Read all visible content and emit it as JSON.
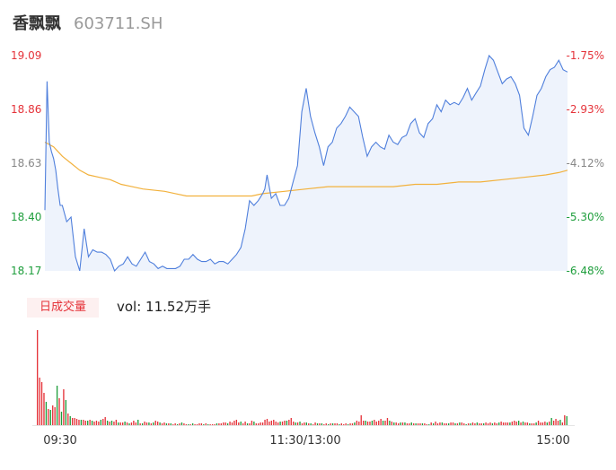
{
  "header": {
    "name": "香飘飘",
    "code": "603711.SH"
  },
  "volume_label": {
    "tab": "日成交量",
    "value": "vol: 11.52万手"
  },
  "colors": {
    "price_line": "#4f7fdc",
    "avg_line": "#f2b13c",
    "up": "#e5333a",
    "down": "#1e9e3c",
    "neutral": "#888888"
  },
  "chart_data": [
    {
      "type": "line",
      "title": "",
      "y_tick_labels": [
        "19.09",
        "18.86",
        "18.63",
        "18.40",
        "18.17"
      ],
      "pct_tick_labels": [
        "-1.75%",
        "-2.93%",
        "-4.12%",
        "-5.30%",
        "-6.48%"
      ],
      "x_tick_labels": [
        "09:30",
        "11:30/13:00",
        "15:00"
      ],
      "ylim": [
        18.17,
        19.09
      ],
      "xlim": [
        0,
        240
      ],
      "series": [
        {
          "role": "price",
          "x": [
            0,
            1,
            2,
            3,
            4,
            5,
            6,
            7,
            8,
            10,
            12,
            14,
            16,
            18,
            20,
            22,
            24,
            26,
            28,
            30,
            32,
            34,
            36,
            38,
            40,
            42,
            44,
            46,
            48,
            50,
            52,
            54,
            56,
            58,
            60,
            62,
            64,
            66,
            68,
            70,
            72,
            74,
            76,
            78,
            80,
            82,
            84,
            86,
            88,
            90,
            92,
            94,
            96,
            98,
            100,
            101,
            102,
            103,
            104,
            106,
            108,
            110,
            112,
            114,
            116,
            118,
            120,
            122,
            124,
            126,
            128,
            130,
            132,
            134,
            136,
            138,
            140,
            142,
            144,
            146,
            148,
            150,
            152,
            154,
            156,
            158,
            160,
            162,
            164,
            166,
            168,
            170,
            172,
            174,
            176,
            178,
            180,
            182,
            184,
            186,
            188,
            190,
            192,
            194,
            196,
            198,
            200,
            202,
            204,
            206,
            208,
            210,
            212,
            214,
            216,
            218,
            220,
            222,
            224,
            226,
            228,
            230,
            232,
            234,
            236,
            238,
            240
          ],
          "values": [
            18.43,
            18.98,
            18.72,
            18.68,
            18.65,
            18.6,
            18.52,
            18.45,
            18.45,
            18.38,
            18.4,
            18.23,
            18.17,
            18.35,
            18.23,
            18.26,
            18.25,
            18.25,
            18.24,
            18.22,
            18.17,
            18.19,
            18.2,
            18.23,
            18.2,
            18.19,
            18.22,
            18.25,
            18.21,
            18.2,
            18.18,
            18.19,
            18.18,
            18.18,
            18.18,
            18.19,
            18.22,
            18.22,
            18.24,
            18.22,
            18.21,
            18.21,
            18.22,
            18.2,
            18.21,
            18.21,
            18.2,
            18.22,
            18.24,
            18.27,
            18.35,
            18.47,
            18.45,
            18.47,
            18.5,
            18.52,
            18.58,
            18.53,
            18.48,
            18.5,
            18.45,
            18.45,
            18.48,
            18.55,
            18.62,
            18.85,
            18.95,
            18.83,
            18.76,
            18.7,
            18.62,
            18.7,
            18.72,
            18.78,
            18.8,
            18.83,
            18.87,
            18.85,
            18.83,
            18.74,
            18.66,
            18.7,
            18.72,
            18.7,
            18.69,
            18.75,
            18.72,
            18.71,
            18.74,
            18.75,
            18.8,
            18.82,
            18.76,
            18.74,
            18.8,
            18.82,
            18.88,
            18.85,
            18.9,
            18.88,
            18.89,
            18.88,
            18.91,
            18.95,
            18.9,
            18.93,
            18.96,
            19.03,
            19.09,
            19.07,
            19.02,
            18.97,
            18.99,
            19.0,
            18.97,
            18.92,
            18.78,
            18.75,
            18.83,
            18.92,
            18.95,
            19.0,
            19.03,
            19.04,
            19.07,
            19.03,
            19.02
          ]
        },
        {
          "role": "avg",
          "x": [
            0,
            2,
            4,
            8,
            12,
            16,
            20,
            25,
            30,
            35,
            40,
            45,
            55,
            60,
            65,
            75,
            85,
            95,
            100,
            110,
            120,
            130,
            140,
            150,
            160,
            170,
            180,
            190,
            200,
            210,
            220,
            230,
            236,
            240
          ],
          "values": [
            18.72,
            18.71,
            18.7,
            18.66,
            18.63,
            18.6,
            18.58,
            18.57,
            18.56,
            18.54,
            18.53,
            18.52,
            18.51,
            18.5,
            18.49,
            18.49,
            18.49,
            18.49,
            18.5,
            18.51,
            18.52,
            18.53,
            18.53,
            18.53,
            18.53,
            18.54,
            18.54,
            18.55,
            18.55,
            18.56,
            18.57,
            18.58,
            18.59,
            18.6
          ]
        }
      ]
    },
    {
      "type": "bar",
      "title": "",
      "x_range": [
        0,
        240
      ],
      "volumes": [
        106,
        53,
        48,
        36,
        26,
        18,
        17,
        22,
        20,
        44,
        30,
        15,
        40,
        28,
        13,
        10,
        8,
        8,
        7,
        6,
        6,
        6,
        5,
        5,
        6,
        5,
        4,
        5,
        4,
        6,
        7,
        9,
        5,
        4,
        5,
        4,
        6,
        3,
        3,
        3,
        4,
        3,
        2,
        3,
        5,
        3,
        6,
        2,
        2,
        4,
        3,
        3,
        2,
        3,
        5,
        4,
        3,
        2,
        3,
        2,
        2,
        2,
        1,
        2,
        1,
        2,
        3,
        2,
        1,
        1,
        1,
        2,
        1,
        1,
        2,
        2,
        1,
        2,
        1,
        1,
        1,
        1,
        2,
        2,
        2,
        3,
        3,
        2,
        4,
        3,
        5,
        6,
        3,
        4,
        2,
        4,
        2,
        2,
        5,
        4,
        2,
        2,
        3,
        3,
        6,
        7,
        4,
        5,
        6,
        4,
        3,
        4,
        4,
        5,
        5,
        6,
        8,
        4,
        3,
        3,
        4,
        2,
        3,
        3,
        2,
        2,
        1,
        3,
        2,
        2,
        2,
        1,
        2,
        1,
        2,
        2,
        2,
        2,
        1,
        2,
        1,
        2,
        1,
        2,
        2,
        3,
        5,
        4,
        11,
        5,
        5,
        4,
        4,
        5,
        6,
        4,
        5,
        7,
        5,
        5,
        8,
        5,
        4,
        3,
        3,
        2,
        3,
        3,
        3,
        2,
        2,
        3,
        2,
        2,
        2,
        2,
        2,
        2,
        1,
        1,
        3,
        2,
        4,
        2,
        3,
        3,
        2,
        2,
        2,
        3,
        3,
        2,
        2,
        3,
        3,
        2,
        1,
        2,
        2,
        3,
        2,
        3,
        2,
        2,
        2,
        3,
        2,
        3,
        2,
        3,
        2,
        3,
        4,
        3,
        3,
        3,
        3,
        4,
        5,
        4,
        5,
        3,
        4,
        3,
        3,
        2,
        2,
        2,
        3,
        5,
        3,
        3,
        4,
        3,
        4,
        8,
        5,
        7,
        5,
        6,
        3,
        11,
        10
      ],
      "directions": [
        1,
        1,
        1,
        1,
        -1,
        1,
        -1,
        1,
        1,
        -1,
        1,
        -1,
        1,
        -1,
        1,
        -1,
        1,
        1,
        1,
        1,
        -1,
        1,
        1,
        -1,
        1,
        -1,
        1,
        1,
        1,
        -1,
        1,
        1,
        -1,
        1,
        -1,
        1,
        1,
        -1,
        1,
        1,
        -1,
        1,
        -1,
        1,
        1,
        1,
        -1,
        1,
        -1,
        1,
        1,
        -1,
        1,
        -1,
        1,
        1,
        -1,
        1,
        1,
        -1,
        1,
        -1,
        1,
        1,
        -1,
        1,
        -1,
        1,
        1,
        -1,
        1,
        -1,
        1,
        1,
        1,
        1,
        -1,
        1,
        -1,
        1,
        1,
        1,
        -1,
        1,
        1,
        1,
        1,
        -1,
        1,
        1,
        1,
        1,
        1,
        -1,
        1,
        1,
        -1,
        1,
        1,
        -1,
        1,
        1,
        1,
        1,
        1,
        1,
        1,
        1,
        1,
        1,
        1,
        -1,
        1,
        1,
        -1,
        1,
        1,
        1,
        -1,
        1,
        -1,
        1,
        1,
        -1,
        1,
        -1,
        1,
        1,
        -1,
        1,
        -1,
        1,
        1,
        -1,
        1,
        -1,
        1,
        1,
        -1,
        1,
        1,
        1,
        -1,
        1,
        1,
        -1,
        1,
        1,
        1,
        1,
        -1,
        1,
        1,
        -1,
        1,
        1,
        1,
        1,
        -1,
        1,
        1,
        -1,
        1,
        -1,
        1,
        1,
        -1,
        1,
        -1,
        1,
        1,
        -1,
        1,
        -1,
        1,
        1,
        -1,
        1,
        1,
        -1,
        1,
        -1,
        1,
        1,
        1,
        -1,
        1,
        1,
        -1,
        1,
        1,
        -1,
        1,
        -1,
        1,
        1,
        -1,
        1,
        -1,
        1,
        1,
        -1,
        1,
        1,
        -1,
        1,
        1,
        1,
        -1,
        1,
        1,
        -1,
        1,
        1,
        1,
        1,
        -1,
        1,
        1,
        1,
        -1,
        1,
        -1,
        1,
        1,
        -1,
        1,
        1,
        -1,
        1,
        1,
        1,
        1,
        -1,
        1,
        -1,
        1,
        1,
        1,
        -1,
        1,
        1,
        -1
      ]
    }
  ]
}
